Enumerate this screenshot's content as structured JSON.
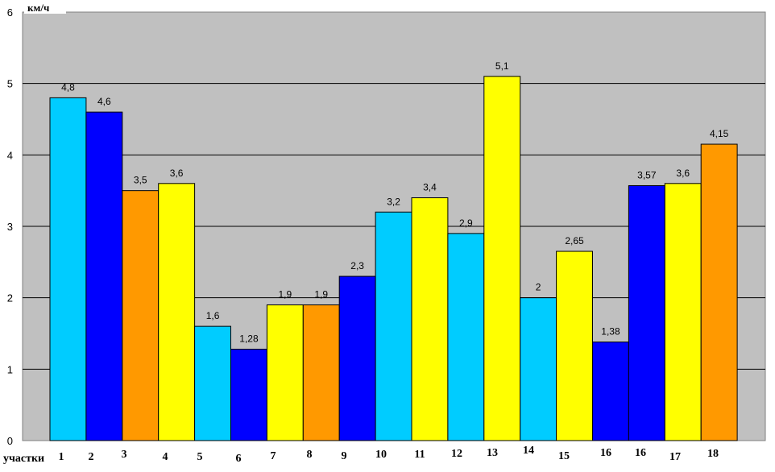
{
  "chart_data": {
    "type": "bar",
    "ylabel": "км/ч",
    "xlabel": "участки",
    "ylim": [
      0,
      6
    ],
    "yticks": [
      0,
      1,
      2,
      3,
      4,
      5,
      6
    ],
    "grid": true,
    "legend": "none",
    "colors": {
      "plot_background": "#c0c0c0",
      "cyan": "#00ccff",
      "blue": "#0000ff",
      "orange": "#ff9900",
      "yellow": "#ffff00"
    },
    "categories": [
      "1",
      "2",
      "3",
      "4",
      "5",
      "6",
      "7",
      "8",
      "9",
      "10",
      "11",
      "12",
      "13",
      "14",
      "15",
      "16",
      "16",
      "17",
      "18"
    ],
    "bars": [
      {
        "value": 4.8,
        "label": "4,8",
        "color": "cyan"
      },
      {
        "value": 4.6,
        "label": "4,6",
        "color": "blue"
      },
      {
        "value": 3.5,
        "label": "3,5",
        "color": "orange"
      },
      {
        "value": 3.6,
        "label": "3,6",
        "color": "yellow"
      },
      {
        "value": 1.6,
        "label": "1,6",
        "color": "cyan"
      },
      {
        "value": 1.28,
        "label": "1,28",
        "color": "blue"
      },
      {
        "value": 1.9,
        "label": "1,9",
        "color": "yellow"
      },
      {
        "value": 1.9,
        "label": "1,9",
        "color": "orange"
      },
      {
        "value": 2.3,
        "label": "2,3",
        "color": "blue"
      },
      {
        "value": 3.2,
        "label": "3,2",
        "color": "cyan"
      },
      {
        "value": 3.4,
        "label": "3,4",
        "color": "yellow"
      },
      {
        "value": 2.9,
        "label": "2,9",
        "color": "cyan"
      },
      {
        "value": 5.1,
        "label": "5,1",
        "color": "yellow"
      },
      {
        "value": 2,
        "label": "2",
        "color": "cyan"
      },
      {
        "value": 2.65,
        "label": "2,65",
        "color": "yellow"
      },
      {
        "value": 1.38,
        "label": "1,38",
        "color": "blue"
      },
      {
        "value": 3.57,
        "label": "3,57",
        "color": "blue"
      },
      {
        "value": 3.6,
        "label": "3,6",
        "color": "yellow"
      },
      {
        "value": 4.15,
        "label": "4,15",
        "color": "orange"
      }
    ]
  }
}
